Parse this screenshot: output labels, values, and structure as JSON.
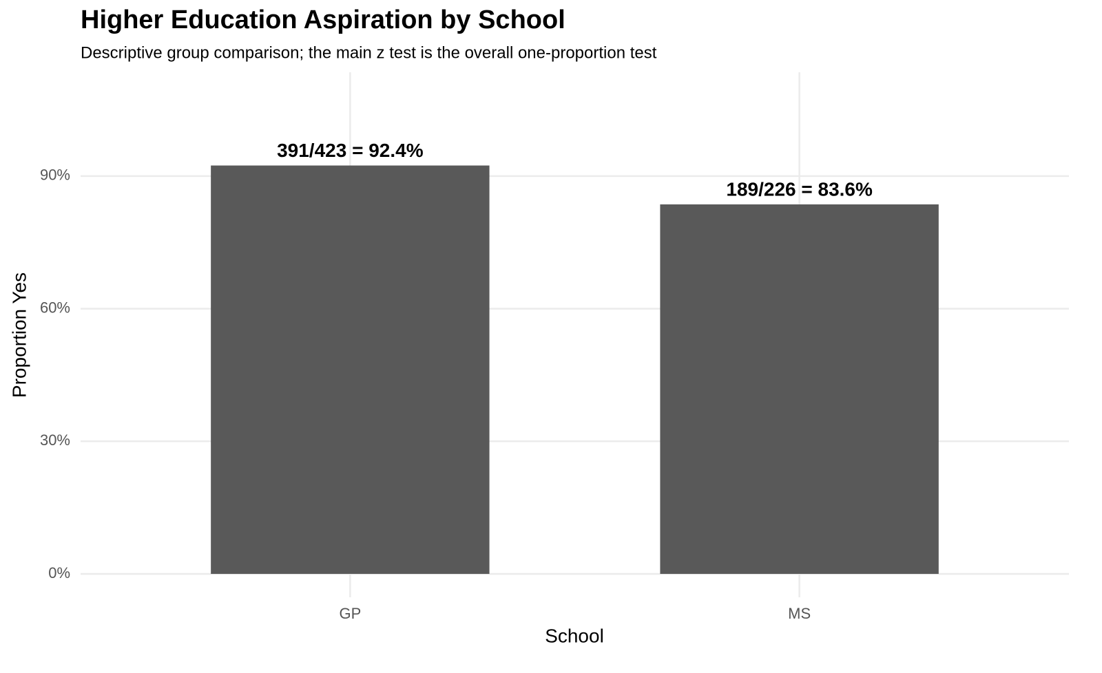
{
  "chart_data": {
    "type": "bar",
    "title": "Higher Education Aspiration by School",
    "subtitle": "Descriptive group comparison; the main z test is the overall one-proportion test",
    "x_label": "School",
    "y_label": "Proportion Yes",
    "categories": [
      "GP",
      "MS"
    ],
    "values": [
      92.4,
      83.6
    ],
    "value_labels": [
      "391/423 = 92.4%",
      "189/226 = 83.6%"
    ],
    "color": "#595959",
    "ylim": [
      -5.3,
      113.5
    ],
    "yticks": [
      {
        "value": 0,
        "label": "0%"
      },
      {
        "value": 30,
        "label": "30%"
      },
      {
        "value": 60,
        "label": "60%"
      },
      {
        "value": 90,
        "label": "90%"
      }
    ],
    "grid": true
  }
}
